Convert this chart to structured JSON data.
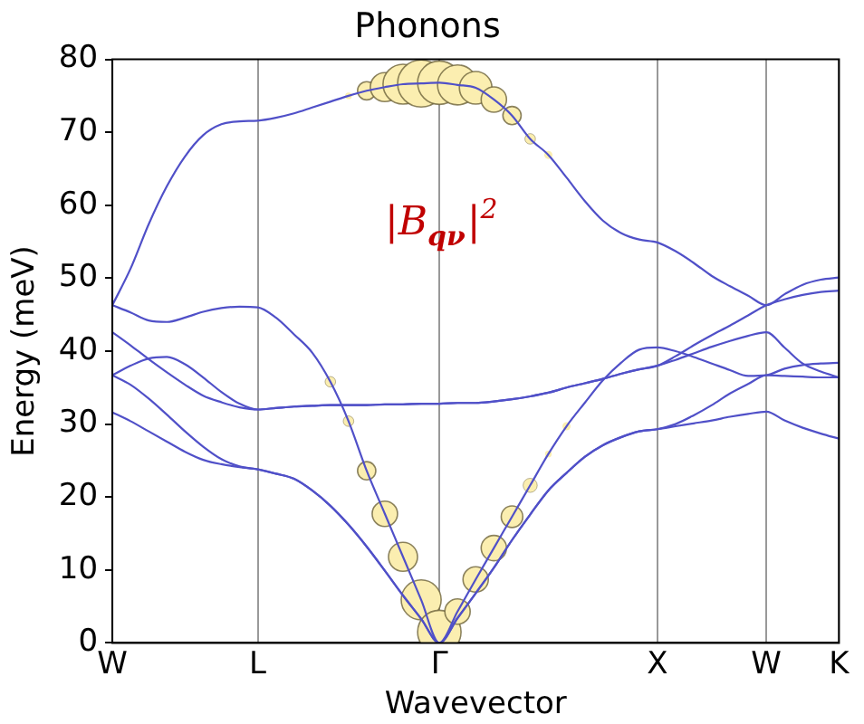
{
  "chart_data": {
    "type": "line",
    "title": "Phonons",
    "xlabel": "Wavevector",
    "ylabel": "Energy (meV)",
    "annotations": [
      "|B$_{qν}$|$^{2}$"
    ],
    "categories": [
      "W",
      null,
      null,
      null,
      null,
      null,
      null,
      null,
      "L",
      null,
      null,
      null,
      null,
      null,
      null,
      null,
      null,
      null,
      "Γ",
      null,
      null,
      null,
      null,
      null,
      null,
      null,
      null,
      null,
      null,
      null,
      "X",
      null,
      null,
      null,
      null,
      null,
      "W",
      null,
      null,
      null,
      "K"
    ],
    "ylim": [
      0,
      80
    ],
    "yticks": [
      0,
      10,
      20,
      30,
      40,
      50,
      60,
      70,
      80
    ],
    "grid": "x",
    "legend": false,
    "line_style": "solid",
    "series": [
      {
        "color": "#5050c8",
        "values": [
          46.3,
          51.3,
          57.4,
          62.6,
          66.7,
          69.6,
          71.1,
          71.5,
          71.6,
          72.0,
          72.6,
          73.4,
          74.2,
          75.0,
          75.7,
          76.2,
          76.6,
          76.7,
          76.8,
          76.5,
          76.1,
          74.5,
          72.3,
          69.1,
          66.9,
          63.8,
          60.6,
          57.9,
          56.2,
          55.3,
          54.9,
          53.7,
          52.1,
          50.3,
          48.9,
          47.6,
          46.3,
          47.8,
          49.1,
          49.8,
          50.1
        ]
      },
      {
        "color": "#5050c8",
        "values": [
          46.3,
          45.3,
          44.2,
          44.0,
          44.6,
          45.4,
          45.9,
          46.1,
          46.0,
          44.6,
          42.3,
          39.8,
          35.8,
          30.4,
          23.6,
          17.7,
          11.8,
          5.9,
          0,
          4.3,
          8.7,
          13.0,
          17.3,
          21.6,
          25.9,
          29.7,
          32.9,
          36.0,
          38.4,
          40.2,
          40.5,
          40.0,
          39.2,
          38.3,
          37.4,
          36.6,
          36.7,
          37.6,
          38.1,
          38.3,
          38.4
        ]
      },
      {
        "color": "#5050c8",
        "values": [
          42.6,
          40.8,
          38.9,
          37.1,
          35.4,
          33.9,
          33.0,
          32.3,
          32.0,
          32.2,
          32.4,
          32.5,
          32.6,
          32.6,
          32.6,
          32.7,
          32.7,
          32.8,
          32.8,
          32.9,
          32.9,
          33.1,
          33.4,
          33.8,
          34.3,
          35.0,
          35.6,
          36.2,
          36.9,
          37.5,
          38.0,
          39.3,
          40.8,
          42.2,
          43.5,
          44.9,
          46.3,
          47.1,
          47.7,
          48.1,
          48.3
        ]
      },
      {
        "color": "#5050c8",
        "values": [
          36.7,
          38.0,
          39.0,
          39.2,
          38.2,
          36.4,
          34.4,
          32.8,
          32.0,
          32.2,
          32.4,
          32.5,
          32.6,
          32.6,
          32.6,
          32.7,
          32.7,
          32.8,
          32.8,
          32.9,
          32.9,
          33.1,
          33.4,
          33.8,
          34.3,
          35.0,
          35.6,
          36.2,
          36.9,
          37.5,
          38.0,
          38.8,
          39.7,
          40.6,
          41.4,
          42.1,
          42.6,
          40.5,
          38.3,
          37.2,
          36.4
        ]
      },
      {
        "color": "#5050c8",
        "values": [
          36.7,
          35.4,
          33.5,
          31.3,
          29.0,
          26.9,
          25.2,
          24.2,
          23.8,
          23.2,
          22.5,
          20.9,
          18.8,
          16.2,
          13.2,
          9.9,
          6.5,
          3.3,
          0,
          3.4,
          6.8,
          10.3,
          14.1,
          17.6,
          20.9,
          23.3,
          25.5,
          27.1,
          28.2,
          29.0,
          29.3,
          30.0,
          31.2,
          32.6,
          34.2,
          35.5,
          36.7,
          36.6,
          36.5,
          36.4,
          36.4
        ]
      },
      {
        "color": "#5050c8",
        "values": [
          31.6,
          30.4,
          29.0,
          27.6,
          26.2,
          25.1,
          24.5,
          24.1,
          23.8,
          23.2,
          22.5,
          20.9,
          18.8,
          16.2,
          13.2,
          9.9,
          6.5,
          3.3,
          0,
          3.4,
          6.8,
          10.3,
          14.1,
          17.6,
          20.9,
          23.3,
          25.5,
          27.1,
          28.2,
          29.0,
          29.3,
          29.7,
          30.1,
          30.5,
          31.0,
          31.4,
          31.7,
          30.5,
          29.5,
          28.7,
          28.0
        ]
      },
      {
        "type": "bubble",
        "color": "#fbeeb0",
        "values": [
          null,
          null,
          null,
          null,
          null,
          null,
          null,
          null,
          null,
          null,
          null,
          null,
          null,
          75.0,
          75.7,
          76.2,
          76.6,
          76.7,
          76.8,
          76.5,
          76.1,
          74.5,
          72.3,
          69.1,
          66.9,
          null,
          null,
          null,
          null,
          null,
          null,
          null,
          null,
          null,
          null,
          null,
          null,
          null,
          null,
          null,
          null
        ],
        "sizes": [
          null,
          null,
          null,
          null,
          null,
          null,
          null,
          null,
          null,
          null,
          null,
          null,
          null,
          0.02,
          0.15,
          0.38,
          0.72,
          1,
          0.85,
          0.72,
          0.48,
          0.29,
          0.15,
          0.05,
          0.03,
          null,
          null,
          null,
          null,
          null,
          null,
          null,
          null,
          null,
          null,
          null,
          null,
          null,
          null,
          null,
          null
        ]
      },
      {
        "type": "bubble",
        "color": "#fbeeb0",
        "values": [
          null,
          null,
          null,
          null,
          null,
          null,
          null,
          null,
          null,
          null,
          null,
          null,
          35.8,
          30.4,
          23.6,
          17.7,
          11.8,
          5.9,
          1.5,
          4.3,
          8.7,
          13.0,
          17.3,
          21.6,
          25.9,
          29.7,
          null,
          null,
          null,
          null,
          null,
          null,
          null,
          null,
          null,
          null,
          null,
          null,
          null,
          null,
          null
        ],
        "sizes": [
          null,
          null,
          null,
          null,
          null,
          null,
          null,
          null,
          null,
          null,
          null,
          null,
          0.05,
          0.05,
          0.15,
          0.29,
          0.38,
          0.72,
          0.85,
          0.29,
          0.29,
          0.29,
          0.21,
          0.09,
          0.02,
          0.03,
          null,
          null,
          null,
          null,
          null,
          null,
          null,
          null,
          null,
          null,
          null,
          null,
          null,
          null,
          null
        ]
      }
    ]
  }
}
